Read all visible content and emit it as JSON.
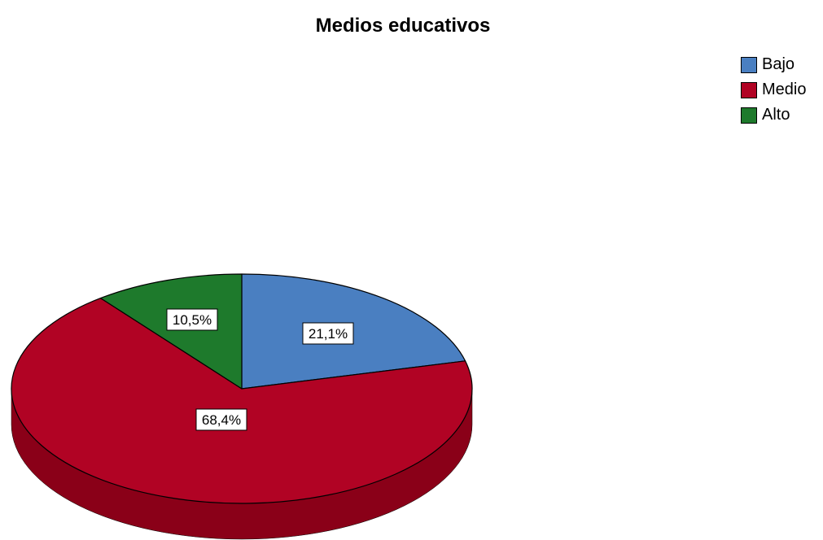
{
  "chart_data": {
    "type": "pie",
    "title": "Medios educativos",
    "categories": [
      "Bajo",
      "Medio",
      "Alto"
    ],
    "values": [
      21.1,
      68.4,
      10.5
    ],
    "data_labels": [
      "21,1%",
      "68,4%",
      "10,5%"
    ],
    "colors": [
      "#4a7fc1",
      "#b10324",
      "#1e7a2c"
    ],
    "side_colors": [
      "#2f5d95",
      "#8a0018",
      "#145320"
    ],
    "legend_position": "top-right",
    "style": "3d"
  }
}
